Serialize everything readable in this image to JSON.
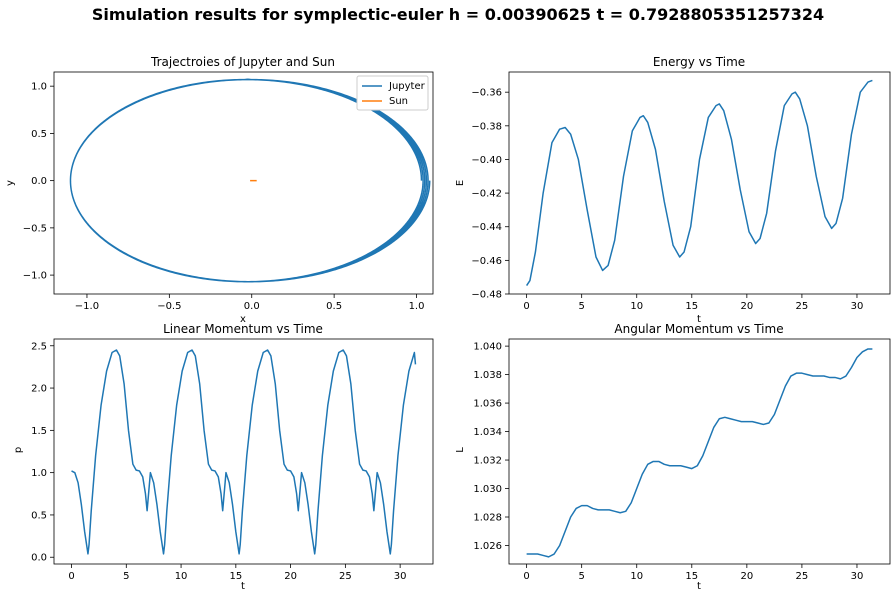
{
  "figure": {
    "suptitle": "Simulation results for symplectic-euler h = 0.00390625 t = 0.7928805351257324"
  },
  "colors": {
    "series1": "#1f77b4",
    "series2": "#ff7f0e"
  },
  "chart_data": [
    {
      "type": "line",
      "title": "Trajectroies of Jupyter and Sun",
      "xlabel": "x",
      "ylabel": "y",
      "xlim": [
        -1.2,
        1.1
      ],
      "ylim": [
        -1.2,
        1.15
      ],
      "xticks": [
        -1.0,
        -0.5,
        0.0,
        0.5,
        1.0
      ],
      "xtick_labels": [
        "−1.0",
        "−0.5",
        "0.0",
        "0.5",
        "1.0"
      ],
      "yticks": [
        -1.0,
        -0.5,
        0.0,
        0.5,
        1.0
      ],
      "ytick_labels": [
        "−1.0",
        "−0.5",
        "0.0",
        "0.5",
        "1.0"
      ],
      "legend_position": "top-right",
      "series": [
        {
          "name": "Jupyter",
          "orbit": {
            "turns": 5,
            "x_left": -1.1,
            "x_right": 1.03,
            "x_right_growth": 0.01,
            "y_half_height": 1.07,
            "center_shift": 0.0
          }
        },
        {
          "name": "Sun",
          "x": [
            -0.01,
            0.03
          ],
          "y": [
            0.0,
            0.0
          ]
        }
      ]
    },
    {
      "type": "line",
      "title": "Energy vs Time",
      "xlabel": "t",
      "ylabel": "E",
      "xlim": [
        -1.6,
        33.0
      ],
      "ylim": [
        -0.48,
        -0.348
      ],
      "xticks": [
        0,
        5,
        10,
        15,
        20,
        25,
        30
      ],
      "xtick_labels": [
        "0",
        "5",
        "10",
        "15",
        "20",
        "25",
        "30"
      ],
      "yticks": [
        -0.48,
        -0.46,
        -0.44,
        -0.42,
        -0.4,
        -0.38,
        -0.36
      ],
      "ytick_labels": [
        "−0.48",
        "−0.46",
        "−0.44",
        "−0.42",
        "−0.40",
        "−0.38",
        "−0.36"
      ],
      "series": [
        {
          "x": [
            0,
            0.3,
            0.8,
            1.5,
            2.3,
            3.0,
            3.5,
            4.0,
            4.7,
            5.5,
            6.3,
            6.9,
            7.4,
            8.0,
            8.8,
            9.6,
            10.3,
            10.6,
            11.0,
            11.7,
            12.5,
            13.3,
            13.9,
            14.3,
            14.9,
            15.7,
            16.5,
            17.2,
            17.5,
            17.9,
            18.6,
            19.4,
            20.2,
            20.8,
            21.2,
            21.8,
            22.6,
            23.4,
            24.1,
            24.4,
            24.8,
            25.5,
            26.3,
            27.1,
            27.7,
            28.1,
            28.7,
            29.5,
            30.3,
            31.0,
            31.4
          ],
          "y": [
            -0.475,
            -0.472,
            -0.455,
            -0.42,
            -0.39,
            -0.382,
            -0.381,
            -0.385,
            -0.4,
            -0.43,
            -0.458,
            -0.466,
            -0.463,
            -0.448,
            -0.41,
            -0.383,
            -0.375,
            -0.374,
            -0.378,
            -0.394,
            -0.425,
            -0.451,
            -0.458,
            -0.455,
            -0.44,
            -0.4,
            -0.375,
            -0.368,
            -0.367,
            -0.371,
            -0.388,
            -0.418,
            -0.443,
            -0.45,
            -0.447,
            -0.432,
            -0.395,
            -0.368,
            -0.361,
            -0.36,
            -0.364,
            -0.38,
            -0.41,
            -0.434,
            -0.441,
            -0.438,
            -0.423,
            -0.385,
            -0.36,
            -0.354,
            -0.353
          ]
        }
      ]
    },
    {
      "type": "line",
      "title": "Linear Momentum vs Time",
      "xlabel": "t",
      "ylabel": "p",
      "xlim": [
        -1.6,
        33.0
      ],
      "ylim": [
        -0.08,
        2.58
      ],
      "xticks": [
        0,
        5,
        10,
        15,
        20,
        25,
        30
      ],
      "xtick_labels": [
        "0",
        "5",
        "10",
        "15",
        "20",
        "25",
        "30"
      ],
      "yticks": [
        0.0,
        0.5,
        1.0,
        1.5,
        2.0,
        2.5
      ],
      "ytick_labels": [
        "0.0",
        "0.5",
        "1.0",
        "1.5",
        "2.0",
        "2.5"
      ],
      "period": 6.9,
      "t_end": 31.4,
      "period_profile": {
        "x": [
          0,
          0.3,
          0.6,
          0.9,
          1.2,
          1.5,
          1.6,
          1.8,
          2.2,
          2.7,
          3.2,
          3.7,
          4.1,
          4.4,
          4.8,
          5.2,
          5.6,
          5.9,
          6.2,
          6.5,
          6.75,
          6.9
        ],
        "y": [
          1.02,
          1.0,
          0.88,
          0.62,
          0.3,
          0.04,
          0.15,
          0.55,
          1.2,
          1.8,
          2.2,
          2.42,
          2.45,
          2.38,
          2.05,
          1.5,
          1.1,
          1.03,
          1.02,
          0.95,
          0.75,
          0.55
        ]
      }
    },
    {
      "type": "line",
      "title": "Angular Momentum vs Time",
      "xlabel": "t",
      "ylabel": "L",
      "xlim": [
        -1.6,
        33.0
      ],
      "ylim": [
        1.0247,
        1.0405
      ],
      "xticks": [
        0,
        5,
        10,
        15,
        20,
        25,
        30
      ],
      "xtick_labels": [
        "0",
        "5",
        "10",
        "15",
        "20",
        "25",
        "30"
      ],
      "yticks": [
        1.026,
        1.028,
        1.03,
        1.032,
        1.034,
        1.036,
        1.038,
        1.04
      ],
      "ytick_labels": [
        "1.026",
        "1.028",
        "1.030",
        "1.032",
        "1.034",
        "1.036",
        "1.038",
        "1.040"
      ],
      "series": [
        {
          "x": [
            0,
            0.5,
            1.0,
            1.5,
            2.0,
            2.5,
            3.0,
            3.5,
            4.0,
            4.5,
            5.0,
            5.5,
            6.0,
            6.5,
            7.0,
            7.5,
            8.0,
            8.5,
            9.0,
            9.5,
            10.0,
            10.5,
            11.0,
            11.5,
            12.0,
            12.5,
            13.0,
            13.5,
            14.0,
            14.5,
            15.0,
            15.5,
            16.0,
            16.5,
            17.0,
            17.5,
            18.0,
            18.5,
            19.0,
            19.5,
            20.0,
            20.5,
            21.0,
            21.5,
            22.0,
            22.5,
            23.0,
            23.5,
            24.0,
            24.5,
            25.0,
            25.5,
            26.0,
            26.5,
            27.0,
            27.5,
            28.0,
            28.5,
            29.0,
            29.5,
            30.0,
            30.5,
            31.0,
            31.4
          ],
          "y": [
            1.0254,
            1.0254,
            1.0254,
            1.0253,
            1.0252,
            1.0254,
            1.026,
            1.027,
            1.028,
            1.0286,
            1.0288,
            1.0288,
            1.0286,
            1.0285,
            1.0285,
            1.0285,
            1.0284,
            1.0283,
            1.0284,
            1.029,
            1.03,
            1.031,
            1.0317,
            1.0319,
            1.0319,
            1.0317,
            1.0316,
            1.0316,
            1.0316,
            1.0315,
            1.0314,
            1.0316,
            1.0323,
            1.0333,
            1.0343,
            1.0349,
            1.035,
            1.0349,
            1.0348,
            1.0347,
            1.0347,
            1.0347,
            1.0346,
            1.0345,
            1.0346,
            1.0352,
            1.0362,
            1.0372,
            1.0379,
            1.0381,
            1.0381,
            1.038,
            1.0379,
            1.0379,
            1.0379,
            1.0378,
            1.0378,
            1.0377,
            1.0379,
            1.0385,
            1.0392,
            1.0396,
            1.0398,
            1.0398
          ]
        }
      ]
    }
  ]
}
